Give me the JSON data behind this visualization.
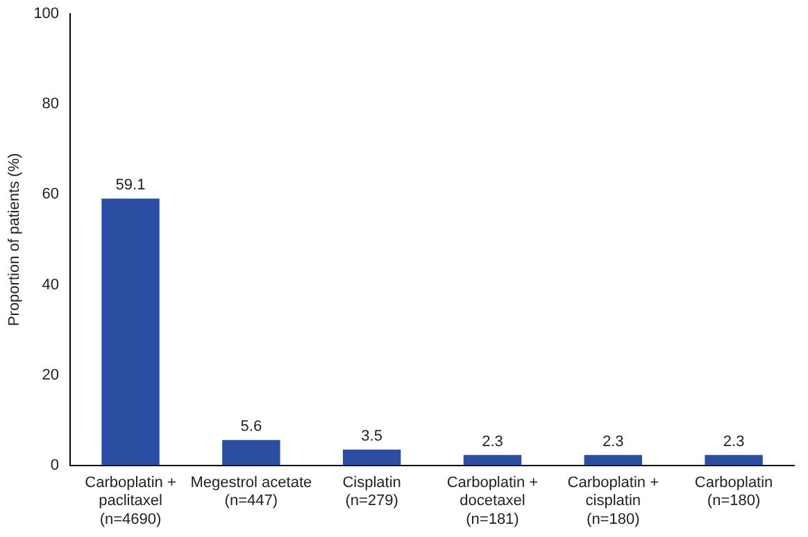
{
  "chart_data": {
    "type": "bar",
    "ylabel": "Proportion of patients (%)",
    "categories": [
      "Carboplatin +\npaclitaxel\n(n=4690)",
      "Megestrol acetate\n(n=447)",
      "Cisplatin\n(n=279)",
      "Carboplatin +\ndocetaxel\n(n=181)",
      "Carboplatin +\ncisplatin\n(n=180)",
      "Carboplatin\n(n=180)"
    ],
    "values": [
      59.1,
      5.6,
      3.5,
      2.3,
      2.3,
      2.3
    ],
    "color": "#2b4ea2",
    "ylim": [
      0,
      100
    ],
    "yticks": [
      0,
      20,
      40,
      60,
      80,
      100
    ],
    "grid": false,
    "legend": false,
    "data_labels": true
  }
}
